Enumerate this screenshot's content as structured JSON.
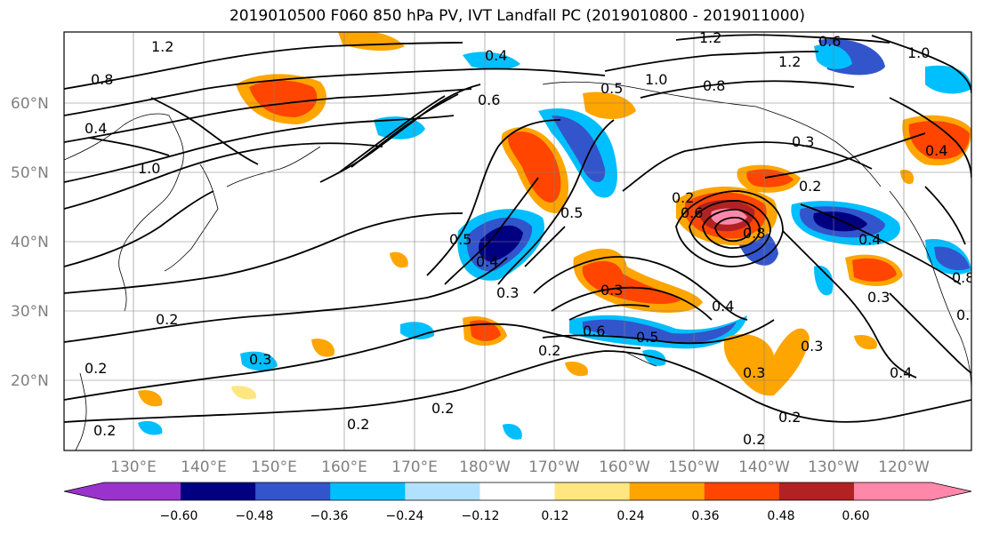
{
  "title": "2019010500 F060 850 hPa PV, IVT Landfall PC (2019010800 - 2019011000)",
  "map": {
    "lat_labels": [
      "60°N",
      "50°N",
      "40°N",
      "30°N",
      "20°N"
    ],
    "lon_labels": [
      "130°E",
      "140°E",
      "150°E",
      "160°E",
      "170°E",
      "180°W",
      "170°W",
      "160°W",
      "150°W",
      "140°W",
      "130°W",
      "120°W"
    ],
    "contour_labels": [
      "1.2",
      "0.8",
      "1.0",
      "0.4",
      "0.6",
      "0.5",
      "0.3",
      "0.2",
      "1.2",
      "0.4",
      "0.6",
      "1.2",
      "1.0",
      "0.8",
      "0.2",
      "0.6",
      "0.5",
      "0.2",
      "0.4",
      "0.3",
      "0.5",
      "0.3",
      "0.2",
      "0.2",
      "0.3",
      "0.6",
      "0.5",
      "0.4",
      "0.3",
      "0.8",
      "0.4",
      "0.3",
      "0.3",
      "0.2",
      "0.2",
      "0.2",
      "1.0",
      "0.2",
      "0.4",
      "0.2",
      "0.4",
      "0.5",
      "0.8"
    ]
  },
  "colorbar": {
    "colors": [
      "#9933cc",
      "#000080",
      "#3355cc",
      "#00bfff",
      "#b0e2ff",
      "#ffffff",
      "#ffe680",
      "#ffa500",
      "#ff4500",
      "#b22222",
      "#ff88aa"
    ],
    "tick_labels": [
      "−0.60",
      "−0.48",
      "−0.36",
      "−0.24",
      "−0.12",
      "0.12",
      "0.24",
      "0.36",
      "0.48",
      "0.60"
    ]
  }
}
